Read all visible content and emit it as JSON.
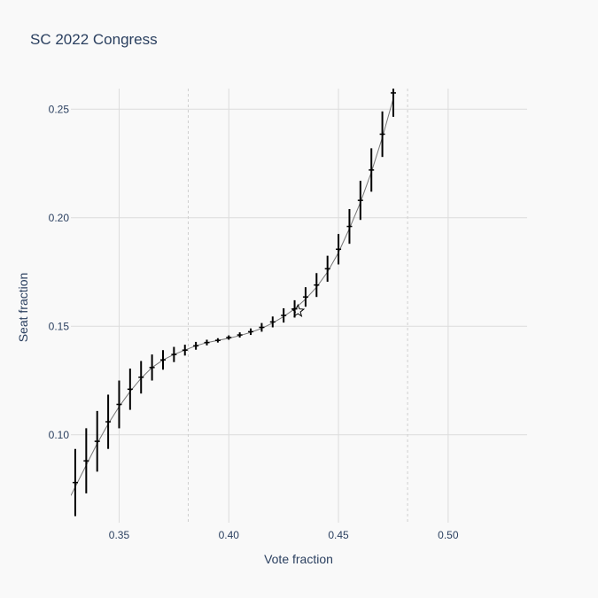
{
  "chart_data": {
    "type": "scatter",
    "title": "SC 2022 Congress",
    "xlabel": "Vote fraction",
    "ylabel": "Seat fraction",
    "xlim": [
      0.328,
      0.536
    ],
    "ylim": [
      0.0595,
      0.2595
    ],
    "xticks": [
      0.35,
      0.4,
      0.45,
      0.5
    ],
    "xtick_labels": [
      "0.35",
      "0.40",
      "0.45",
      "0.50"
    ],
    "yticks": [
      0.1,
      0.15,
      0.2,
      0.25
    ],
    "ytick_labels": [
      "0.10",
      "0.15",
      "0.20",
      "0.25"
    ],
    "grid": true,
    "reference_lines_x": [
      0.3815,
      0.4815
    ],
    "curve": {
      "x": [
        0.328,
        0.335,
        0.34,
        0.345,
        0.35,
        0.355,
        0.36,
        0.365,
        0.37,
        0.375,
        0.38,
        0.385,
        0.39,
        0.395,
        0.4,
        0.405,
        0.41,
        0.415,
        0.42,
        0.425,
        0.43,
        0.435,
        0.44,
        0.445,
        0.45,
        0.455,
        0.46,
        0.465,
        0.47,
        0.475
      ],
      "y": [
        0.072,
        0.086,
        0.096,
        0.105,
        0.113,
        0.12,
        0.126,
        0.131,
        0.1345,
        0.137,
        0.139,
        0.141,
        0.1425,
        0.1435,
        0.1445,
        0.1457,
        0.1472,
        0.149,
        0.1515,
        0.1545,
        0.158,
        0.1625,
        0.168,
        0.175,
        0.184,
        0.195,
        0.207,
        0.221,
        0.237,
        0.255
      ]
    },
    "points": {
      "x": [
        0.33,
        0.335,
        0.34,
        0.345,
        0.35,
        0.355,
        0.36,
        0.365,
        0.37,
        0.375,
        0.38,
        0.385,
        0.39,
        0.395,
        0.4,
        0.405,
        0.41,
        0.415,
        0.42,
        0.425,
        0.43,
        0.435,
        0.44,
        0.445,
        0.45,
        0.455,
        0.46,
        0.465,
        0.47,
        0.475
      ],
      "y": [
        0.078,
        0.088,
        0.097,
        0.106,
        0.114,
        0.121,
        0.1265,
        0.131,
        0.1345,
        0.137,
        0.139,
        0.141,
        0.1425,
        0.1435,
        0.1448,
        0.146,
        0.1475,
        0.1495,
        0.152,
        0.155,
        0.158,
        0.1635,
        0.169,
        0.1765,
        0.1855,
        0.196,
        0.208,
        0.222,
        0.2385,
        0.2575
      ],
      "err": [
        0.0155,
        0.015,
        0.014,
        0.0125,
        0.011,
        0.0095,
        0.0075,
        0.006,
        0.0045,
        0.0035,
        0.0025,
        0.0018,
        0.0013,
        0.001,
        0.001,
        0.0012,
        0.0015,
        0.002,
        0.0025,
        0.0033,
        0.004,
        0.0045,
        0.0055,
        0.006,
        0.007,
        0.008,
        0.009,
        0.01,
        0.0105,
        0.011
      ]
    },
    "observed": {
      "x": 0.4315,
      "y": 0.157,
      "marker": "star-open"
    }
  }
}
